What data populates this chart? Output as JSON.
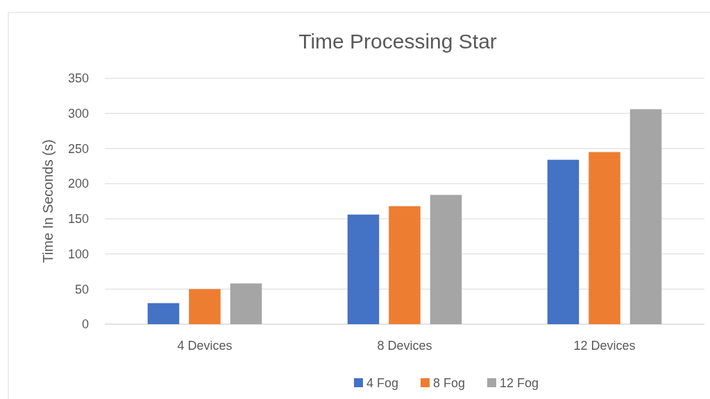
{
  "chart_data": {
    "type": "bar",
    "title": "Time Processing Star",
    "ylabel": "Time In Seconds (s)",
    "categories": [
      "4 Devices",
      "8 Devices",
      "12 Devices"
    ],
    "series": [
      {
        "name": "4 Fog",
        "color": "#4472c4",
        "values": [
          30,
          156,
          234
        ]
      },
      {
        "name": "8 Fog",
        "color": "#ed7d31",
        "values": [
          50,
          168,
          245
        ]
      },
      {
        "name": "12 Fog",
        "color": "#a5a5a5",
        "values": [
          58,
          184,
          306
        ]
      }
    ],
    "ylim": [
      0,
      350
    ],
    "yticks": [
      0,
      50,
      100,
      150,
      200,
      250,
      300,
      350
    ],
    "grid": "y",
    "legend": "bottom"
  }
}
